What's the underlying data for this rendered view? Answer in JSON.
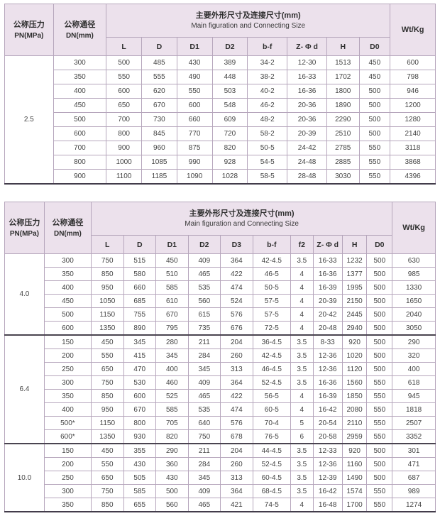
{
  "colors": {
    "header_bg": "#ece1ec",
    "grid_line": "#b6a6bc",
    "heavy_line": "#423c4a",
    "text": "#434343"
  },
  "table1": {
    "header": {
      "pn_cn": "公称压力",
      "pn_en": "PN(MPa)",
      "dn_cn": "公称通径",
      "dn_en": "DN(mm)",
      "main_cn": "主要外形尺寸及连接尺寸(mm)",
      "main_en": "Main figuration and Connecting Size",
      "wt": "Wt/Kg",
      "sub": [
        "L",
        "D",
        "D1",
        "D2",
        "b-f",
        "Z- Φ d",
        "H",
        "D0"
      ]
    },
    "sections": [
      {
        "pn": "2.5",
        "rows": [
          [
            "300",
            "500",
            "485",
            "430",
            "389",
            "34-2",
            "12-30",
            "1513",
            "450",
            "600"
          ],
          [
            "350",
            "550",
            "555",
            "490",
            "448",
            "38-2",
            "16-33",
            "1702",
            "450",
            "798"
          ],
          [
            "400",
            "600",
            "620",
            "550",
            "503",
            "40-2",
            "16-36",
            "1800",
            "500",
            "946"
          ],
          [
            "450",
            "650",
            "670",
            "600",
            "548",
            "46-2",
            "20-36",
            "1890",
            "500",
            "1200"
          ],
          [
            "500",
            "700",
            "730",
            "660",
            "609",
            "48-2",
            "20-36",
            "2290",
            "500",
            "1280"
          ],
          [
            "600",
            "800",
            "845",
            "770",
            "720",
            "58-2",
            "20-39",
            "2510",
            "500",
            "2140"
          ],
          [
            "700",
            "900",
            "960",
            "875",
            "820",
            "50-5",
            "24-42",
            "2785",
            "550",
            "3118"
          ],
          [
            "800",
            "1000",
            "1085",
            "990",
            "928",
            "54-5",
            "24-48",
            "2885",
            "550",
            "3868"
          ],
          [
            "900",
            "1100",
            "1185",
            "1090",
            "1028",
            "58-5",
            "28-48",
            "3030",
            "550",
            "4396"
          ]
        ]
      }
    ]
  },
  "table2": {
    "header": {
      "pn_cn": "公称压力",
      "pn_en": "PN(MPa)",
      "dn_cn": "公称通径",
      "dn_en": "DN(mm)",
      "main_cn": "主要外形尺寸及连接尺寸(mm)",
      "main_en": "Main figuration and Connecting Size",
      "wt": "Wt/Kg",
      "sub": [
        "L",
        "D",
        "D1",
        "D2",
        "D3",
        "b-f",
        "f2",
        "Z- Φ d",
        "H",
        "D0"
      ]
    },
    "sections": [
      {
        "pn": "4.0",
        "rows": [
          [
            "300",
            "750",
            "515",
            "450",
            "409",
            "364",
            "42-4.5",
            "3.5",
            "16-33",
            "1232",
            "500",
            "630"
          ],
          [
            "350",
            "850",
            "580",
            "510",
            "465",
            "422",
            "46-5",
            "4",
            "16-36",
            "1377",
            "500",
            "985"
          ],
          [
            "400",
            "950",
            "660",
            "585",
            "535",
            "474",
            "50-5",
            "4",
            "16-39",
            "1995",
            "500",
            "1330"
          ],
          [
            "450",
            "1050",
            "685",
            "610",
            "560",
            "524",
            "57-5",
            "4",
            "20-39",
            "2150",
            "500",
            "1650"
          ],
          [
            "500",
            "1150",
            "755",
            "670",
            "615",
            "576",
            "57-5",
            "4",
            "20-42",
            "2445",
            "500",
            "2040"
          ],
          [
            "600",
            "1350",
            "890",
            "795",
            "735",
            "676",
            "72-5",
            "4",
            "20-48",
            "2940",
            "500",
            "3050"
          ]
        ]
      },
      {
        "pn": "6.4",
        "rows": [
          [
            "150",
            "450",
            "345",
            "280",
            "211",
            "204",
            "36-4.5",
            "3.5",
            "8-33",
            "920",
            "500",
            "290"
          ],
          [
            "200",
            "550",
            "415",
            "345",
            "284",
            "260",
            "42-4.5",
            "3.5",
            "12-36",
            "1020",
            "500",
            "320"
          ],
          [
            "250",
            "650",
            "470",
            "400",
            "345",
            "313",
            "46-4.5",
            "3.5",
            "12-36",
            "1120",
            "500",
            "400"
          ],
          [
            "300",
            "750",
            "530",
            "460",
            "409",
            "364",
            "52-4.5",
            "3.5",
            "16-36",
            "1560",
            "550",
            "618"
          ],
          [
            "350",
            "850",
            "600",
            "525",
            "465",
            "422",
            "56-5",
            "4",
            "16-39",
            "1850",
            "550",
            "945"
          ],
          [
            "400",
            "950",
            "670",
            "585",
            "535",
            "474",
            "60-5",
            "4",
            "16-42",
            "2080",
            "550",
            "1818"
          ],
          [
            "500*",
            "1150",
            "800",
            "705",
            "640",
            "576",
            "70-4",
            "5",
            "20-54",
            "2110",
            "550",
            "2507"
          ],
          [
            "600*",
            "1350",
            "930",
            "820",
            "750",
            "678",
            "76-5",
            "6",
            "20-58",
            "2959",
            "550",
            "3352"
          ]
        ]
      },
      {
        "pn": "10.0",
        "rows": [
          [
            "150",
            "450",
            "355",
            "290",
            "211",
            "204",
            "44-4.5",
            "3.5",
            "12-33",
            "920",
            "500",
            "301"
          ],
          [
            "200",
            "550",
            "430",
            "360",
            "284",
            "260",
            "52-4.5",
            "3.5",
            "12-36",
            "1160",
            "500",
            "471"
          ],
          [
            "250",
            "650",
            "505",
            "430",
            "345",
            "313",
            "60-4.5",
            "3.5",
            "12-39",
            "1490",
            "500",
            "687"
          ],
          [
            "300",
            "750",
            "585",
            "500",
            "409",
            "364",
            "68-4.5",
            "3.5",
            "16-42",
            "1574",
            "550",
            "989"
          ],
          [
            "350",
            "850",
            "655",
            "560",
            "465",
            "421",
            "74-5",
            "4",
            "16-48",
            "1700",
            "550",
            "1274"
          ]
        ]
      }
    ]
  }
}
